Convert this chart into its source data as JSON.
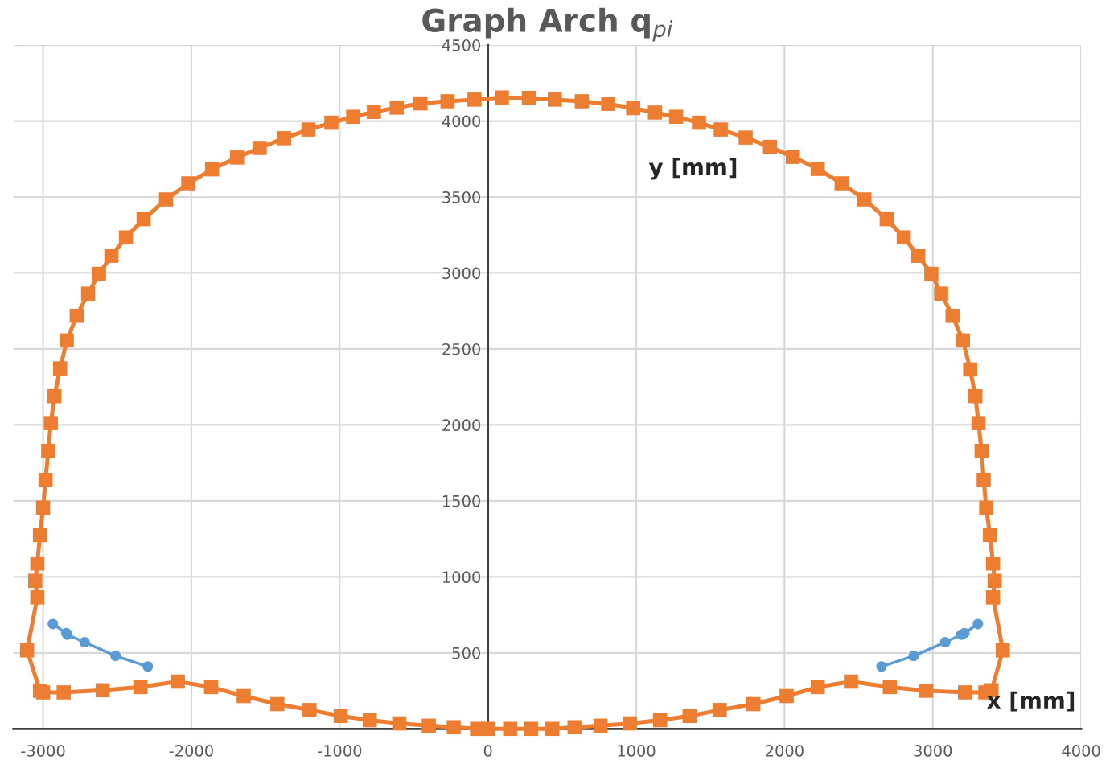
{
  "chart_data": {
    "type": "line",
    "title": "Graph Arch q$_{pi}$",
    "xlabel": "x [mm]",
    "ylabel": "y [mm]",
    "xlim": [
      -3200,
      4000
    ],
    "ylim": [
      0,
      4500
    ],
    "xticks": [
      -3000,
      -2000,
      -1000,
      0,
      1000,
      2000,
      3000,
      4000
    ],
    "yticks": [
      {
        "value": 0,
        "label": null
      },
      500,
      1000,
      1500,
      2000,
      2500,
      3000,
      3500,
      4000,
      4500
    ],
    "grid": true,
    "line_style": "solid",
    "series": [
      {
        "color": "#5b9bd5",
        "marker": "circle",
        "x": [
          -2934,
          -2843,
          -2836,
          -2720,
          -2511,
          -2294,
          null,
          2654,
          2871,
          3084,
          3192,
          3213,
          3304
        ],
        "values": [
          690,
          630,
          620,
          570,
          480,
          410,
          null,
          410,
          480,
          570,
          620,
          630,
          690
        ]
      },
      {
        "color": "#ed7d31",
        "marker": "square",
        "x": [
          0,
          150,
          290,
          434,
          584,
          759,
          958,
          1161,
          1360,
          1563,
          1790,
          2014,
          2224,
          2448,
          2710,
          2955,
          3217,
          3354,
          3396,
          3472,
          3406,
          3417,
          3406,
          3385,
          3360,
          3343,
          3329,
          3308,
          3287,
          3252,
          3203,
          3133,
          3056,
          2990,
          2902,
          2804,
          2689,
          2539,
          2385,
          2224,
          2056,
          1902,
          1738,
          1570,
          1423,
          1269,
          1126,
          979,
          811,
          633,
          451,
          276,
          94,
          -91,
          -273,
          -455,
          -615,
          -769,
          -909,
          -1056,
          -1210,
          -1374,
          -1539,
          -1692,
          -1860,
          -2021,
          -2171,
          -2322,
          -2441,
          -2539,
          -2623,
          -2696,
          -2773,
          -2840,
          -2885,
          -2923,
          -2948,
          -2965,
          -2983,
          -3000,
          -3021,
          -3039,
          -3053,
          -3039,
          -3108,
          -3021,
          -3000,
          -2861,
          -2598,
          -2343,
          -2091,
          -1867,
          -1647,
          -1420,
          -1203,
          -993,
          -797,
          -598,
          -399,
          -231,
          -73
        ],
        "values": [
          0,
          0,
          0,
          0,
          11,
          21,
          36,
          57,
          85,
          124,
          163,
          216,
          275,
          311,
          275,
          251,
          240,
          240,
          254,
          516,
          865,
          974,
          1088,
          1275,
          1455,
          1638,
          1829,
          2012,
          2189,
          2365,
          2556,
          2718,
          2864,
          2994,
          3113,
          3234,
          3354,
          3484,
          3590,
          3685,
          3764,
          3830,
          3891,
          3944,
          3989,
          4028,
          4056,
          4085,
          4113,
          4130,
          4141,
          4152,
          4155,
          4141,
          4130,
          4116,
          4088,
          4060,
          4028,
          3989,
          3944,
          3887,
          3823,
          3760,
          3682,
          3590,
          3484,
          3354,
          3234,
          3113,
          2994,
          2864,
          2718,
          2556,
          2372,
          2189,
          2012,
          1829,
          1638,
          1455,
          1275,
          1088,
          974,
          865,
          516,
          251,
          240,
          240,
          254,
          275,
          311,
          275,
          216,
          163,
          124,
          85,
          57,
          36,
          21,
          11,
          0
        ]
      }
    ]
  }
}
